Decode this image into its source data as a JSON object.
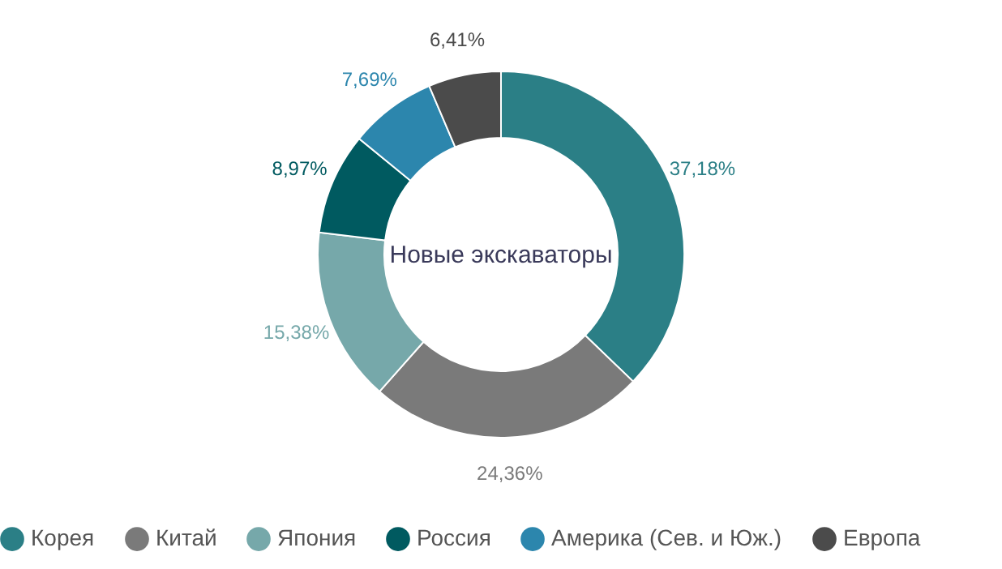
{
  "chart_data": {
    "type": "donut",
    "title": "Новые экскаваторы",
    "categories": [
      "Корея",
      "Китай",
      "Япония",
      "Россия",
      "Америка (Сев. и Юж.)",
      "Европа"
    ],
    "values": [
      37.18,
      24.36,
      15.38,
      8.97,
      7.69,
      6.41
    ],
    "value_labels": [
      "37,18%",
      "24,36%",
      "15,38%",
      "8,97%",
      "7,69%",
      "6,41%"
    ],
    "colors": [
      "#2b7f86",
      "#7a7a7a",
      "#76a8aa",
      "#005a60",
      "#2c86ad",
      "#4b4b4b"
    ],
    "legend": "bottom"
  }
}
